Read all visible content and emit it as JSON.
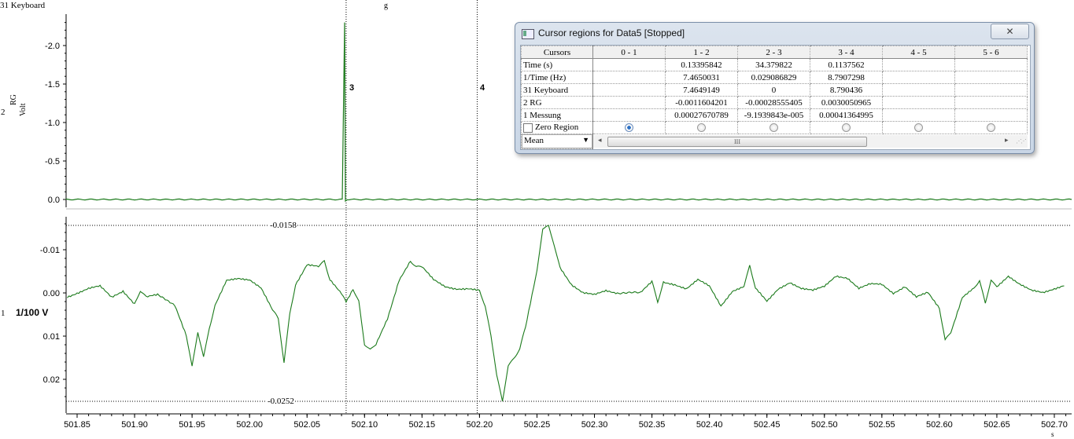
{
  "top_channel_label": "31 Keyboard",
  "marker_g": "g",
  "upper_panel": {
    "channel_number": "2",
    "channel_name": "RG",
    "unit": "Volt",
    "y_ticks": [
      "-2.0",
      "-1.5",
      "-1.0",
      "-0.5",
      "0.0"
    ]
  },
  "lower_panel": {
    "channel_number": "1",
    "scale_label": "1/100 V",
    "y_ticks": [
      "-0.01",
      "0.00",
      "0.01",
      "0.02"
    ],
    "hline_top_label": "-0.0158",
    "hline_bottom_label": "-0.0252"
  },
  "cursors": [
    {
      "label": "3",
      "x": 502.084
    },
    {
      "label": "4",
      "x": 502.198
    }
  ],
  "x_axis": {
    "unit": "s",
    "ticks": [
      "501.85",
      "501.90",
      "501.95",
      "502.00",
      "502.05",
      "502.10",
      "502.15",
      "502.20",
      "502.25",
      "502.30",
      "502.35",
      "502.40",
      "502.45",
      "502.50",
      "502.55",
      "502.60",
      "502.65",
      "502.70"
    ]
  },
  "colors": {
    "trace": "#1b7a1b",
    "axis": "#000000",
    "dialog_border": "#7a8ea8",
    "selected_radio": "#2a6fc4"
  },
  "dialog": {
    "title": "Cursor regions for Data5 [Stopped]",
    "close_icon": "close-icon",
    "columns": [
      "Cursors",
      "0 - 1",
      "1 - 2",
      "2 - 3",
      "3 - 4",
      "4 - 5",
      "5 - 6"
    ],
    "rows": [
      {
        "label": "Time (s)",
        "values": [
          "",
          "0.13395842",
          "34.379822",
          "0.1137562",
          "",
          ""
        ]
      },
      {
        "label": "1/Time (Hz)",
        "values": [
          "",
          "7.4650031",
          "0.029086829",
          "8.7907298",
          "",
          ""
        ]
      },
      {
        "label": "31 Keyboard",
        "values": [
          "",
          "7.4649149",
          "0",
          "8.790436",
          "",
          ""
        ]
      },
      {
        "label": "2 RG",
        "values": [
          "",
          "-0.0011604201",
          "-0.00028555405",
          "0.0030050965",
          "",
          ""
        ]
      },
      {
        "label": "1 Messung",
        "values": [
          "",
          "0.00027670789",
          "-9.1939843e-005",
          "0.00041364995",
          "",
          ""
        ]
      }
    ],
    "zero_region_label": "Zero Region",
    "zero_region_checked": false,
    "zero_region_selected_column": "0 - 1",
    "measure_select": "Mean",
    "scroll_grip": "III",
    "scroll_left_icon": "scroll-left-icon",
    "scroll_right_icon": "scroll-right-icon"
  }
}
